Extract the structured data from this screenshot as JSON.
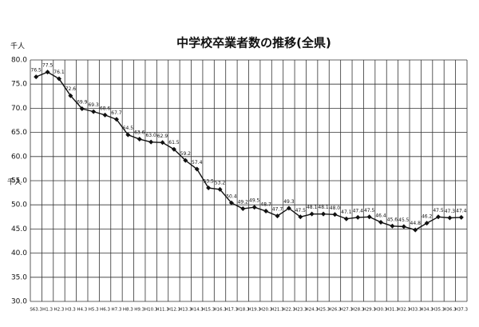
{
  "chart_data": {
    "type": "line",
    "title": "中学校卒業者数の推移(全県)",
    "unit": "千人",
    "categories": [
      "S63.3",
      "H1.3",
      "H2.3",
      "H3.3",
      "H4.3",
      "H5.3",
      "H6.3",
      "H7.3",
      "H8.3",
      "H9.3",
      "H10.3",
      "H11.3",
      "H12.3",
      "H13.3",
      "H14.3",
      "H15.3",
      "H16.3",
      "H17.3",
      "H18.3",
      "H19.3",
      "H20.3",
      "H21.3",
      "H22.3",
      "H23.3",
      "H24.3",
      "H25.3",
      "H26.3",
      "H27.3",
      "H28.3",
      "H29.3",
      "H30.3",
      "H31.3",
      "H32.3",
      "H33.3",
      "H34.3",
      "H35.3",
      "H36.3",
      "H37.3"
    ],
    "values": [
      76.5,
      77.5,
      76.1,
      72.6,
      69.9,
      69.3,
      68.6,
      67.7,
      64.5,
      63.6,
      63.0,
      62.9,
      61.5,
      59.2,
      57.4,
      53.5,
      53.2,
      50.4,
      49.2,
      49.5,
      48.7,
      47.7,
      49.3,
      47.5,
      48.1,
      48.1,
      48.0,
      47.1,
      47.4,
      47.5,
      46.4,
      45.6,
      45.5,
      44.8,
      46.2,
      47.5,
      47.3,
      47.4
    ],
    "value_labels": [
      "76.5",
      "77.5",
      "76.1",
      "72.6",
      "69.9",
      "69.3",
      "68.6",
      "67.7",
      "64.5",
      "63.6",
      "63.0",
      "62.9",
      "61.5",
      "59.2",
      "57.4",
      "53.5",
      "53.2",
      "50.4",
      "49.2",
      "49.5",
      "48.7",
      "47.7",
      "49.3",
      "47.5",
      "48.1",
      "48.1",
      "48.0",
      "47.1",
      "47.4",
      "47.5",
      "46.4",
      "45.6",
      "45.5",
      "44.8",
      "46.2",
      "47.5",
      "47.3",
      "47.4"
    ],
    "color": "#111111",
    "ylim": [
      30,
      80
    ],
    "yticks": [
      {
        "value": 30,
        "label": "30.0"
      },
      {
        "value": 35,
        "label": "35.0"
      },
      {
        "value": 40,
        "label": "40.0"
      },
      {
        "value": 45,
        "label": "45.0"
      },
      {
        "value": 50,
        "label": "50.0"
      },
      {
        "value": 55,
        "label": "55.0"
      },
      {
        "value": 60,
        "label": "60.0"
      },
      {
        "value": 65,
        "label": "65.0"
      },
      {
        "value": 70,
        "label": "70.0"
      },
      {
        "value": 75,
        "label": "75.0"
      },
      {
        "value": 80,
        "label": "80.0"
      }
    ],
    "grid": true
  }
}
